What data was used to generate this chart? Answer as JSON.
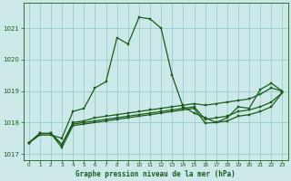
{
  "title": "Graphe pression niveau de la mer (hPa)",
  "background_color": "#cce8e8",
  "grid_color": "#99cccc",
  "line_color": "#1a5c1a",
  "marker_color": "#1a5c1a",
  "xlim": [
    -0.5,
    23.5
  ],
  "ylim": [
    1016.8,
    1021.8
  ],
  "yticks": [
    1017,
    1018,
    1019,
    1020,
    1021
  ],
  "xticks": [
    0,
    1,
    2,
    3,
    4,
    5,
    6,
    7,
    8,
    9,
    10,
    11,
    12,
    13,
    14,
    15,
    16,
    17,
    18,
    19,
    20,
    21,
    22,
    23
  ],
  "series": [
    [
      1017.35,
      1017.6,
      1017.6,
      1017.5,
      1018.35,
      1018.45,
      1019.1,
      1019.3,
      1020.7,
      1020.5,
      1021.35,
      1021.3,
      1021.0,
      1019.5,
      1018.5,
      1018.3,
      1018.15,
      1018.0,
      1018.15,
      1018.5,
      1018.45,
      1019.05,
      1019.25,
      1019.0
    ],
    [
      1017.35,
      1017.65,
      1017.65,
      1017.3,
      1018.0,
      1018.05,
      1018.15,
      1018.2,
      1018.25,
      1018.3,
      1018.35,
      1018.4,
      1018.45,
      1018.5,
      1018.55,
      1018.6,
      1018.55,
      1018.6,
      1018.65,
      1018.7,
      1018.75,
      1018.9,
      1019.1,
      1019.0
    ],
    [
      1017.35,
      1017.65,
      1017.65,
      1017.3,
      1017.95,
      1018.0,
      1018.05,
      1018.1,
      1018.15,
      1018.2,
      1018.25,
      1018.3,
      1018.35,
      1018.4,
      1018.45,
      1018.5,
      1018.1,
      1018.15,
      1018.2,
      1018.35,
      1018.4,
      1018.5,
      1018.65,
      1018.95
    ],
    [
      1017.35,
      1017.65,
      1017.65,
      1017.2,
      1017.9,
      1017.95,
      1018.0,
      1018.05,
      1018.1,
      1018.15,
      1018.2,
      1018.25,
      1018.3,
      1018.35,
      1018.4,
      1018.45,
      1017.98,
      1018.0,
      1018.05,
      1018.2,
      1018.25,
      1018.35,
      1018.5,
      1018.95
    ]
  ]
}
